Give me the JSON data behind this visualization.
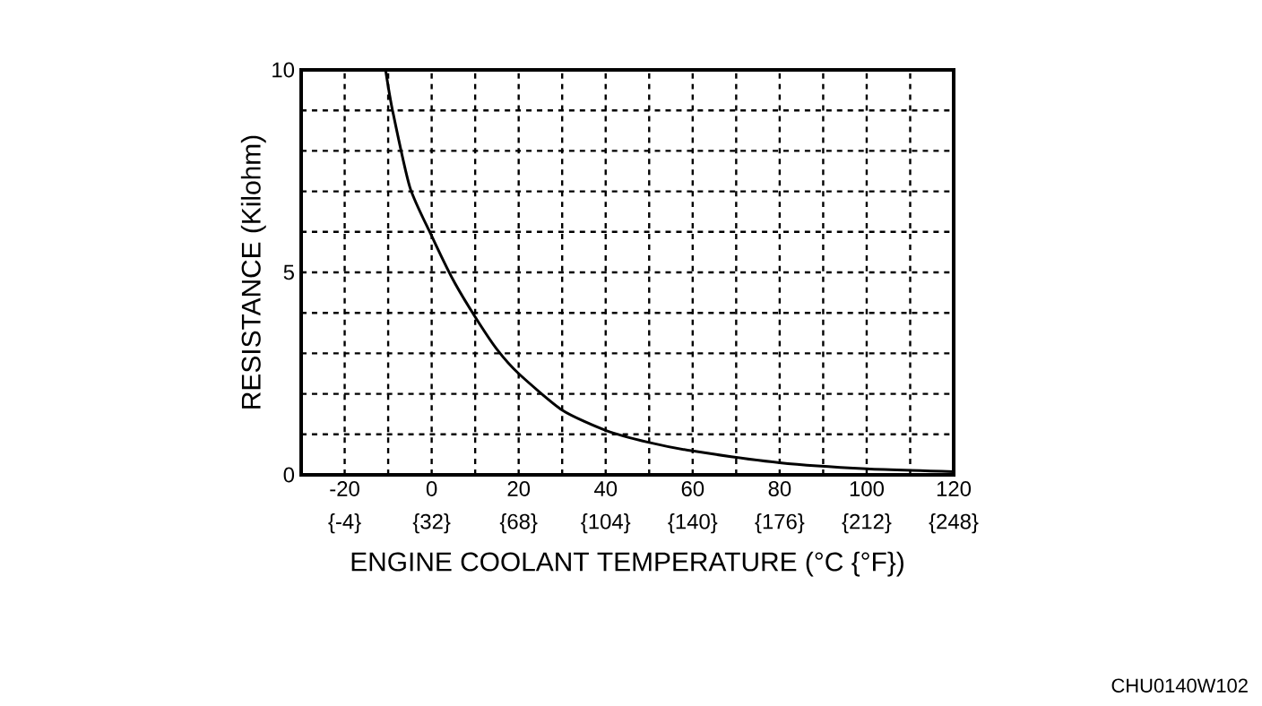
{
  "chart_data": {
    "type": "line",
    "xlabel": "ENGINE COOLANT TEMPERATURE (°C {°F})",
    "ylabel": "RESISTANCE (Kilohm)",
    "x": [
      -10.6,
      -9,
      -5,
      0,
      5,
      10,
      15,
      20,
      30,
      40,
      50,
      60,
      80,
      100,
      120
    ],
    "series": [
      {
        "color": "#000000",
        "values": [
          10,
          9,
          7.1,
          5.9,
          4.8,
          3.9,
          3.1,
          2.5,
          1.6,
          1.1,
          0.8,
          0.59,
          0.3,
          0.15,
          0.08
        ]
      }
    ],
    "xlim": [
      -30,
      120
    ],
    "xticks": [
      -20,
      0,
      20,
      40,
      60,
      80,
      100,
      120
    ],
    "x2lim": [
      -22,
      248
    ],
    "x2ticks": [
      {
        "value": -4,
        "label": "{-4}"
      },
      {
        "value": 32,
        "label": "{32}"
      },
      {
        "value": 68,
        "label": "{68}"
      },
      {
        "value": 104,
        "label": "{104}"
      },
      {
        "value": 140,
        "label": "{140}"
      },
      {
        "value": 176,
        "label": "{176}"
      },
      {
        "value": 212,
        "label": "{212}"
      },
      {
        "value": 248,
        "label": "{248}"
      }
    ],
    "ylim": [
      0,
      10
    ],
    "yticks": [
      0,
      5,
      10
    ],
    "grid": true,
    "marker": "none",
    "line_style": "solid",
    "annotations": [
      "CHU0140W102"
    ]
  }
}
